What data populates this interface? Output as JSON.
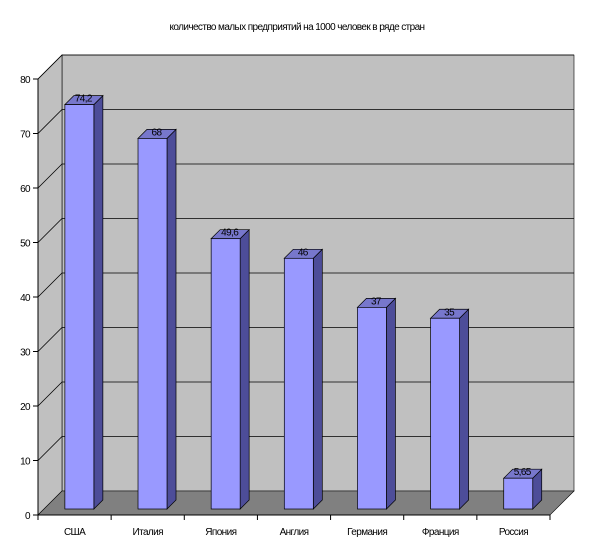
{
  "chart_data": {
    "type": "bar",
    "title": "количество малых предприятий на 1000 человек в ряде стран",
    "categories": [
      "США",
      "Италия",
      "Япония",
      "Англия",
      "Германия",
      "Франция",
      "Россия"
    ],
    "values": [
      74.2,
      68,
      49.6,
      46,
      37,
      35,
      5.65
    ],
    "data_labels": [
      "74,2",
      "68",
      "49,6",
      "46",
      "37",
      "35",
      "5,65"
    ],
    "yticks": [
      "0",
      "10",
      "20",
      "30",
      "40",
      "50",
      "60",
      "70",
      "80"
    ],
    "ylim": [
      0,
      80
    ],
    "grid": true,
    "legend": "none",
    "style": "3d-column",
    "colors": {
      "bar_front": "#9999ff",
      "bar_side": "#4d4d99",
      "bar_top": "#7777cc",
      "wall": "#c0c0c0",
      "floor": "#808080",
      "gridline": "#000000"
    }
  }
}
